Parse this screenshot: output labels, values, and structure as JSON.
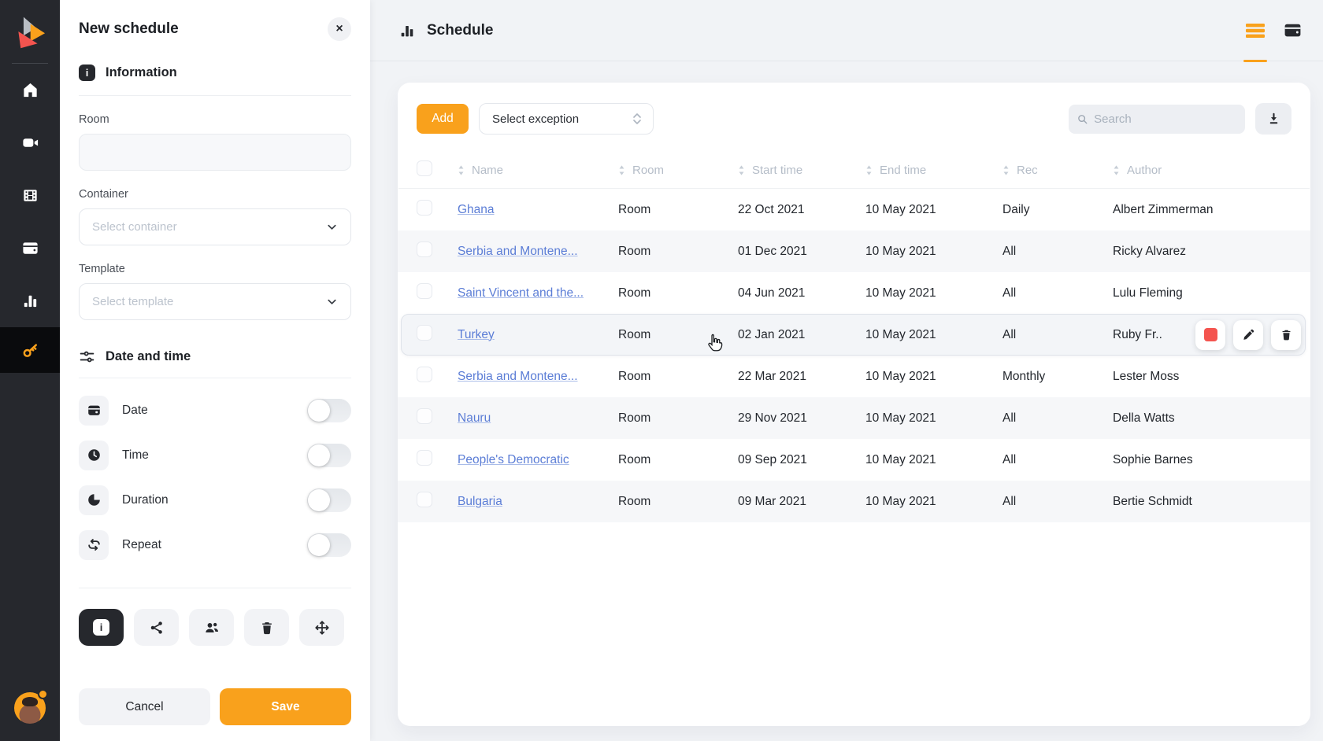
{
  "colors": {
    "accent": "#f9a11c",
    "danger": "#f4544f",
    "link": "#5b7dd6",
    "sidebar_bg": "#26282d",
    "sidebar_active_bg": "#0a0b0d",
    "main_bg": "#f1f3f6"
  },
  "sidebar": {
    "items": [
      {
        "icon": "home-icon",
        "active": false
      },
      {
        "icon": "video-camera-icon",
        "active": false
      },
      {
        "icon": "film-icon",
        "active": false
      },
      {
        "icon": "wallet-icon",
        "active": false
      },
      {
        "icon": "bar-chart-icon",
        "active": false
      },
      {
        "icon": "key-icon",
        "active": true
      }
    ]
  },
  "panel": {
    "title": "New schedule",
    "close_label": "×",
    "info_section_label": "Information",
    "info_icon_glyph": "i",
    "room_label": "Room",
    "room_value": "",
    "container_label": "Container",
    "container_placeholder": "Select container",
    "template_label": "Template",
    "template_placeholder": "Select template",
    "datetime_section_label": "Date and time",
    "toggles": [
      {
        "icon": "calendar-icon",
        "label": "Date",
        "on": false
      },
      {
        "icon": "clock-icon",
        "label": "Time",
        "on": false
      },
      {
        "icon": "pie-duration-icon",
        "label": "Duration",
        "on": false
      },
      {
        "icon": "repeat-icon",
        "label": "Repeat",
        "on": false
      }
    ],
    "toolbar_icons": [
      "info-icon",
      "share-icon",
      "people-icon",
      "trash-icon",
      "move-icon"
    ],
    "cancel_label": "Cancel",
    "save_label": "Save"
  },
  "header": {
    "title": "Schedule",
    "view_tabs": [
      {
        "icon": "list-view-icon",
        "active": true
      },
      {
        "icon": "card-view-icon",
        "active": false
      }
    ]
  },
  "toolbar": {
    "add_label": "Add",
    "exception_value": "Select exception",
    "search_placeholder": "Search"
  },
  "table": {
    "columns": [
      "Name",
      "Room",
      "Start time",
      "End time",
      "Rec",
      "Author"
    ],
    "rows": [
      {
        "name": "Ghana",
        "room": "Room",
        "start": "22 Oct 2021",
        "end": "10 May 2021",
        "rec": "Daily",
        "author": "Albert Zimmerman",
        "hovered": false
      },
      {
        "name": "Serbia and Montene...",
        "room": "Room",
        "start": "01 Dec 2021",
        "end": "10 May 2021",
        "rec": "All",
        "author": "Ricky Alvarez",
        "hovered": false
      },
      {
        "name": "Saint Vincent and the...",
        "room": "Room",
        "start": "04 Jun 2021",
        "end": "10 May 2021",
        "rec": "All",
        "author": "Lulu Fleming",
        "hovered": false
      },
      {
        "name": "Turkey",
        "room": "Room",
        "start": "02 Jan 2021",
        "end": "10 May 2021",
        "rec": "All",
        "author": "Ruby Fr..",
        "hovered": true
      },
      {
        "name": "Serbia and Montene...",
        "room": "Room",
        "start": "22 Mar 2021",
        "end": "10 May 2021",
        "rec": "Monthly",
        "author": "Lester Moss",
        "hovered": false
      },
      {
        "name": "Nauru",
        "room": "Room",
        "start": "29 Nov 2021",
        "end": "10 May 2021",
        "rec": "All",
        "author": "Della Watts",
        "hovered": false
      },
      {
        "name": "People's Democratic",
        "room": "Room",
        "start": "09 Sep 2021",
        "end": "10 May 2021",
        "rec": "All",
        "author": "Sophie Barnes",
        "hovered": false
      },
      {
        "name": "Bulgaria",
        "room": "Room",
        "start": "09 Mar 2021",
        "end": "10 May 2021",
        "rec": "All",
        "author": "Bertie Schmidt",
        "hovered": false
      }
    ],
    "row_actions": [
      "color-icon",
      "edit-icon",
      "trash-icon"
    ]
  }
}
